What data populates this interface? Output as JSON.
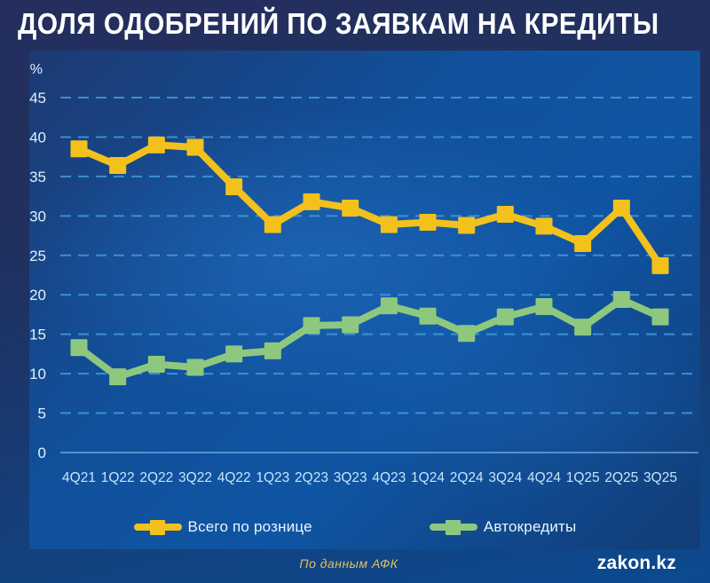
{
  "header": {
    "title": "ДОЛЯ ОДОБРЕНИЙ ПО ЗАЯВКАМ НА КРЕДИТЫ"
  },
  "footer": {
    "source": "По данным АФК",
    "brand": "zakon.kz"
  },
  "colors": {
    "retail_series": "#F2C11C",
    "auto_series": "#8EC87F",
    "gridline": "#3F98D9",
    "zero_line": "#6FB3E2",
    "y_tick_text": "#E2F2FC",
    "x_tick_text": "#C6E6F8",
    "title_text": "#FFFFFF",
    "panel_center": "#0F55A3",
    "panel_edge": "#1D3A73",
    "outer_top": "#242F5E",
    "outer_bottom": "#0C4A90",
    "source_text": "#E3C05C"
  },
  "chart_data": {
    "type": "line",
    "title": "ДОЛЯ ОДОБРЕНИЙ ПО ЗАЯВКАМ НА КРЕДИТЫ",
    "unit": "%",
    "categories": [
      "4Q21",
      "1Q22",
      "2Q22",
      "3Q22",
      "4Q22",
      "1Q23",
      "2Q23",
      "3Q23",
      "4Q23",
      "1Q24",
      "2Q24",
      "3Q24",
      "4Q24",
      "1Q25",
      "2Q25",
      "3Q25"
    ],
    "series": [
      {
        "name": "Всего по рознице",
        "color": "#F2C11C",
        "values": [
          38.5,
          36.4,
          39.0,
          38.7,
          33.7,
          28.9,
          31.8,
          31.0,
          28.9,
          29.2,
          28.8,
          30.2,
          28.7,
          26.5,
          31.0,
          23.7
        ]
      },
      {
        "name": "Автокредиты",
        "color": "#8EC87F",
        "values": [
          13.3,
          9.6,
          11.2,
          10.8,
          12.5,
          12.9,
          16.1,
          16.2,
          18.6,
          17.3,
          15.1,
          17.2,
          18.5,
          15.9,
          19.4,
          17.2
        ]
      }
    ],
    "ylim": [
      0,
      45
    ],
    "ytick_step": 5,
    "grid": "dashed horizontal gridlines, solid zero baseline",
    "legend_position": "bottom",
    "marker": "square"
  }
}
